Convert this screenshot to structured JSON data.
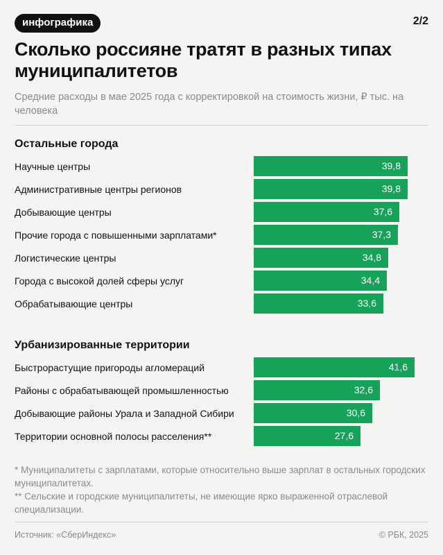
{
  "header": {
    "tag": "инфографика",
    "page": "2/2",
    "title": "Сколько россияне тратят в разных типах муниципалитетов",
    "subtitle": "Средние расходы в мае 2025 года с корректировкой на стоимость жизни, ₽ тыс. на человека"
  },
  "chart_data": {
    "type": "bar",
    "orientation": "horizontal",
    "bar_color": "#17a25a",
    "groups": [
      {
        "name": "Остальные города",
        "categories": [
          "Научные центры",
          "Административные центры регионов",
          "Добывающие центры",
          "Прочие города с повышенными зарплатами*",
          "Логистические центры",
          "Города с высокой долей сферы услуг",
          "Обрабатывающие центры"
        ],
        "values": [
          39.8,
          39.8,
          37.6,
          37.3,
          34.8,
          34.4,
          33.6
        ],
        "labels": [
          "39,8",
          "39,8",
          "37,6",
          "37,3",
          "34,8",
          "34,4",
          "33,6"
        ]
      },
      {
        "name": "Урбанизированные территории",
        "categories": [
          "Быстрорастущие пригороды агломераций",
          "Районы с обрабатывающей промышленностью",
          "Добывающие районы Урала и Западной Сибири",
          "Территории основной полосы расселения**"
        ],
        "values": [
          41.6,
          32.6,
          30.6,
          27.6
        ],
        "labels": [
          "41,6",
          "32,6",
          "30,6",
          "27,6"
        ]
      }
    ]
  },
  "notes": {
    "note1": "* Муниципалитеты с зарплатами, которые относительно выше зарплат в остальных городских муниципалитетах.",
    "note2": "** Сельские и городские муниципалитеты, не имеющие ярко выраженной отраслевой специализации."
  },
  "footer": {
    "source": "Источник: «СберИндекс»",
    "copyright": "© РБК, 2025"
  }
}
